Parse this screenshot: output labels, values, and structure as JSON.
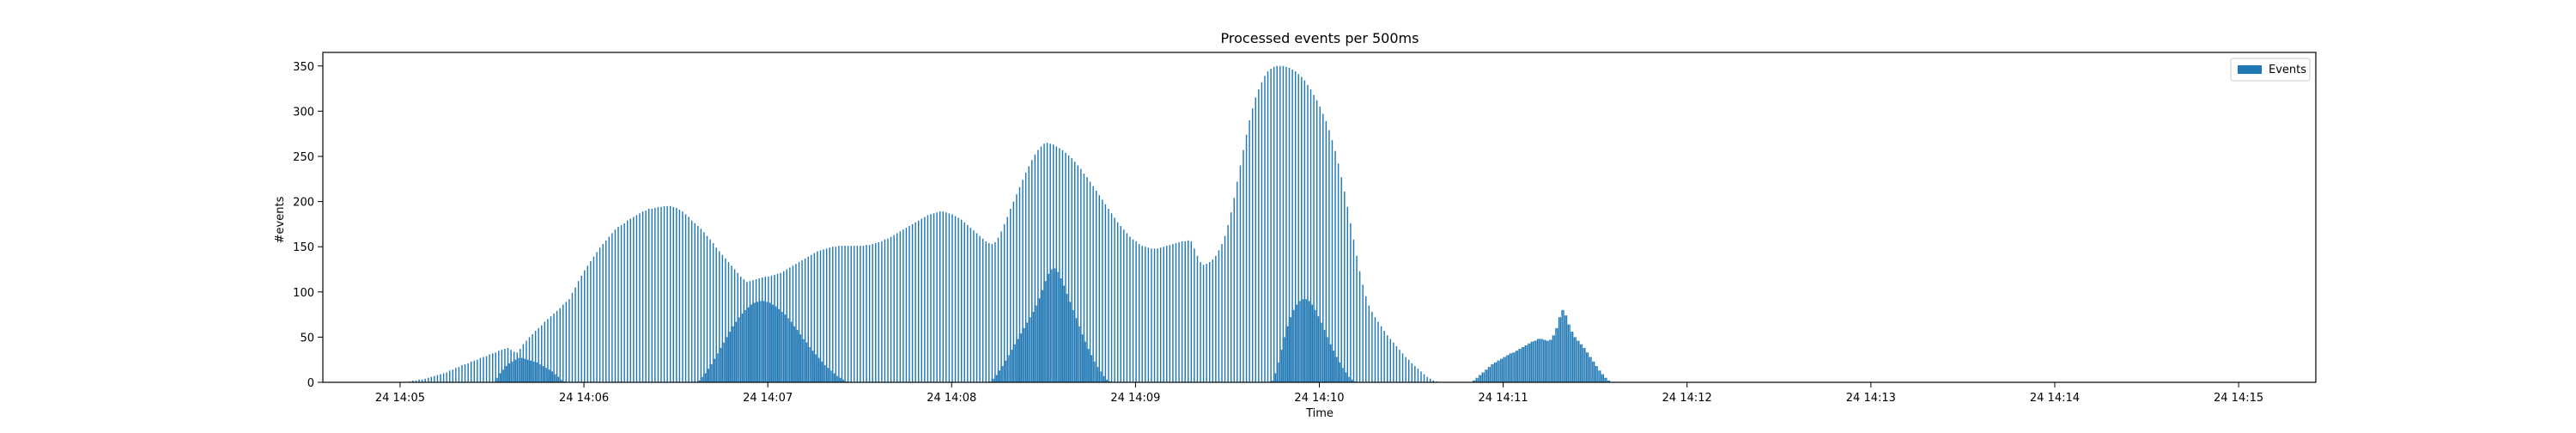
{
  "chart_data": {
    "type": "bar",
    "title": "Processed events per 500ms",
    "xlabel": "Time",
    "ylabel": "#events",
    "bar_color": "#1f77b4",
    "legend": {
      "label": "Events",
      "placement": "upper-right"
    },
    "x_ticks": [
      "24 14:05",
      "24 14:06",
      "24 14:07",
      "24 14:08",
      "24 14:09",
      "24 14:10",
      "24 14:11",
      "24 14:12",
      "24 14:13",
      "24 14:14",
      "24 14:15"
    ],
    "y_ticks": [
      0,
      50,
      100,
      150,
      200,
      250,
      300,
      350
    ],
    "xlim_minutes": [
      -0.42,
      10.42
    ],
    "ylim": [
      0,
      365
    ],
    "bin_seconds": 0.5,
    "series": [
      {
        "name": "Events",
        "description": "sparse bars (one every ~1.5 s) sampled per 1 s",
        "x_start_minute": 0.0,
        "x_step_seconds": 1.0,
        "values": [
          0,
          0,
          0,
          1,
          2,
          2,
          3,
          3,
          4,
          5,
          6,
          7,
          8,
          9,
          10,
          11,
          13,
          14,
          16,
          17,
          19,
          20,
          21,
          23,
          24,
          25,
          27,
          28,
          29,
          31,
          32,
          33,
          35,
          36,
          37,
          38,
          36,
          34,
          33,
          37,
          42,
          46,
          50,
          53,
          57,
          60,
          63,
          67,
          70,
          73,
          76,
          79,
          82,
          86,
          89,
          92,
          99,
          105,
          112,
          118,
          124,
          129,
          134,
          139,
          144,
          149,
          153,
          157,
          161,
          165,
          169,
          172,
          174,
          176,
          179,
          181,
          183,
          185,
          187,
          189,
          190,
          192,
          192,
          193,
          194,
          194,
          195,
          195,
          195,
          194,
          193,
          191,
          189,
          186,
          183,
          179,
          176,
          173,
          170,
          166,
          162,
          158,
          154,
          149,
          145,
          141,
          137,
          133,
          129,
          125,
          121,
          117,
          114,
          111,
          112,
          113,
          114,
          115,
          116,
          117,
          117,
          118,
          119,
          120,
          121,
          123,
          125,
          127,
          129,
          131,
          133,
          135,
          137,
          139,
          141,
          143,
          145,
          146,
          147,
          148,
          149,
          150,
          150,
          151,
          151,
          151,
          151,
          151,
          151,
          151,
          151,
          151,
          152,
          152,
          153,
          154,
          155,
          156,
          158,
          159,
          161,
          163,
          165,
          167,
          169,
          171,
          173,
          175,
          177,
          179,
          181,
          183,
          185,
          186,
          187,
          188,
          189,
          189,
          188,
          187,
          186,
          184,
          182,
          180,
          177,
          174,
          171,
          168,
          165,
          162,
          159,
          156,
          154,
          153,
          155,
          160,
          167,
          175,
          183,
          192,
          200,
          208,
          216,
          224,
          232,
          239,
          246,
          252,
          257,
          261,
          264,
          265,
          264,
          263,
          261,
          259,
          257,
          254,
          251,
          248,
          244,
          240,
          236,
          231,
          227,
          222,
          217,
          212,
          207,
          202,
          197,
          192,
          187,
          182,
          177,
          173,
          169,
          165,
          161,
          158,
          156,
          153,
          151,
          150,
          149,
          148,
          148,
          148,
          149,
          150,
          151,
          152,
          153,
          154,
          155,
          156,
          156,
          157,
          156,
          148,
          140,
          133,
          130,
          131,
          133,
          136,
          140,
          146,
          153,
          162,
          174,
          188,
          204,
          222,
          240,
          257,
          274,
          290,
          303,
          315,
          324,
          332,
          339,
          344,
          347,
          349,
          350,
          350,
          350,
          349,
          348,
          346,
          344,
          341,
          338,
          334,
          329,
          324,
          318,
          312,
          305,
          297,
          289,
          279,
          268,
          256,
          242,
          227,
          211,
          194,
          176,
          158,
          140,
          123,
          108,
          95,
          85,
          78,
          72,
          67,
          62,
          57,
          52,
          48,
          44,
          40,
          36,
          32,
          28,
          25,
          21,
          18,
          15,
          12,
          9,
          6,
          4,
          2,
          1,
          0,
          0
        ]
      },
      {
        "name": "Events",
        "description": "dense bars (one per 0.5 s) sampled per 1 s",
        "x_start_minute": 0.0,
        "x_step_seconds": 1.0,
        "values": [
          0,
          0,
          0,
          0,
          0,
          0,
          0,
          0,
          0,
          0,
          0,
          0,
          0,
          0,
          0,
          0,
          0,
          0,
          0,
          0,
          0,
          0,
          0,
          0,
          0,
          0,
          0,
          0,
          0,
          0,
          0,
          5,
          10,
          14,
          18,
          21,
          23,
          25,
          27,
          27,
          26,
          25,
          24,
          23,
          22,
          20,
          18,
          16,
          14,
          12,
          9,
          6,
          3,
          1,
          0,
          0,
          0,
          0,
          0,
          0,
          0,
          0,
          0,
          0,
          0,
          0,
          0,
          0,
          0,
          0,
          0,
          0,
          0,
          0,
          0,
          0,
          0,
          0,
          0,
          0,
          0,
          0,
          0,
          0,
          0,
          0,
          0,
          0,
          0,
          0,
          0,
          0,
          0,
          0,
          0,
          0,
          0,
          2,
          6,
          10,
          15,
          20,
          26,
          32,
          38,
          44,
          50,
          56,
          62,
          67,
          72,
          76,
          80,
          83,
          86,
          88,
          89,
          90,
          90,
          89,
          88,
          86,
          84,
          81,
          78,
          75,
          71,
          67,
          62,
          58,
          53,
          48,
          44,
          39,
          35,
          31,
          27,
          23,
          19,
          16,
          13,
          10,
          7,
          5,
          3,
          1,
          0,
          0,
          0,
          0,
          0,
          0,
          0,
          0,
          0,
          0,
          0,
          0,
          0,
          0,
          0,
          0,
          0,
          0,
          0,
          0,
          0,
          0,
          0,
          0,
          0,
          0,
          0,
          0,
          0,
          0,
          0,
          0,
          0,
          0,
          0,
          0,
          0,
          0,
          0,
          0,
          0,
          0,
          0,
          0,
          0,
          0,
          1,
          4,
          8,
          13,
          18,
          24,
          30,
          36,
          42,
          48,
          54,
          60,
          66,
          72,
          78,
          85,
          93,
          102,
          112,
          120,
          125,
          126,
          122,
          115,
          107,
          98,
          89,
          80,
          71,
          62,
          53,
          45,
          37,
          30,
          23,
          17,
          12,
          7,
          3,
          1,
          0,
          0,
          0,
          0,
          0,
          0,
          0,
          0,
          0,
          0,
          0,
          0,
          0,
          0,
          0,
          0,
          0,
          0,
          0,
          0,
          0,
          0,
          0,
          0,
          0,
          0,
          0,
          0,
          0,
          0,
          0,
          0,
          0,
          0,
          0,
          0,
          0,
          0,
          0,
          0,
          0,
          0,
          0,
          0,
          0,
          0,
          0,
          0,
          0,
          0,
          0,
          0,
          2,
          10,
          22,
          36,
          50,
          62,
          72,
          80,
          86,
          90,
          92,
          92,
          90,
          86,
          80,
          73,
          66,
          58,
          50,
          42,
          35,
          28,
          22,
          16,
          11,
          6,
          3,
          1,
          0,
          0,
          0,
          0,
          0,
          0,
          0,
          0,
          0,
          0,
          0,
          0,
          0,
          0,
          0,
          0,
          0,
          0,
          0,
          0,
          0,
          0,
          0,
          0,
          0,
          0,
          0,
          0,
          0,
          0,
          0,
          0,
          0,
          0,
          0,
          0,
          0,
          0,
          2,
          5,
          8,
          11,
          14,
          17,
          20,
          22,
          24,
          26,
          28,
          30,
          32,
          33,
          35,
          37,
          39,
          41,
          43,
          45,
          46,
          48,
          48,
          47,
          46,
          47,
          52,
          60,
          72,
          80,
          74,
          64,
          56,
          50,
          46,
          42,
          38,
          33,
          28,
          23,
          18,
          13,
          9,
          5,
          2,
          0,
          0,
          0,
          0,
          0,
          0,
          0,
          0,
          0,
          0,
          0,
          0,
          0,
          0,
          0,
          0,
          0,
          0,
          0,
          0,
          0,
          0,
          0,
          0,
          0
        ]
      }
    ]
  }
}
